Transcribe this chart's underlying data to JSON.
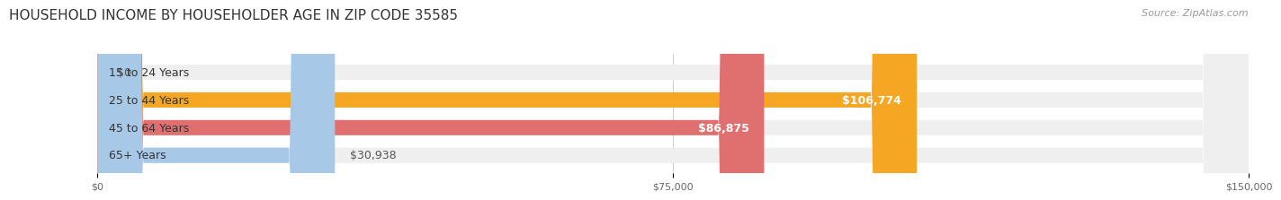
{
  "title": "HOUSEHOLD INCOME BY HOUSEHOLDER AGE IN ZIP CODE 35585",
  "source": "Source: ZipAtlas.com",
  "categories": [
    "15 to 24 Years",
    "25 to 44 Years",
    "45 to 64 Years",
    "65+ Years"
  ],
  "values": [
    0,
    106774,
    86875,
    30938
  ],
  "labels": [
    "$0",
    "$106,774",
    "$86,875",
    "$30,938"
  ],
  "bar_colors": [
    "#f4a0b0",
    "#f5a623",
    "#e07070",
    "#a8c8e8"
  ],
  "bar_bg_color": "#efefef",
  "xlim": [
    0,
    150000
  ],
  "xticks": [
    0,
    75000,
    150000
  ],
  "xtick_labels": [
    "$0",
    "$75,000",
    "$150,000"
  ],
  "title_fontsize": 11,
  "source_fontsize": 8,
  "label_fontsize": 9,
  "category_fontsize": 9,
  "bar_height": 0.55,
  "background_color": "#ffffff"
}
